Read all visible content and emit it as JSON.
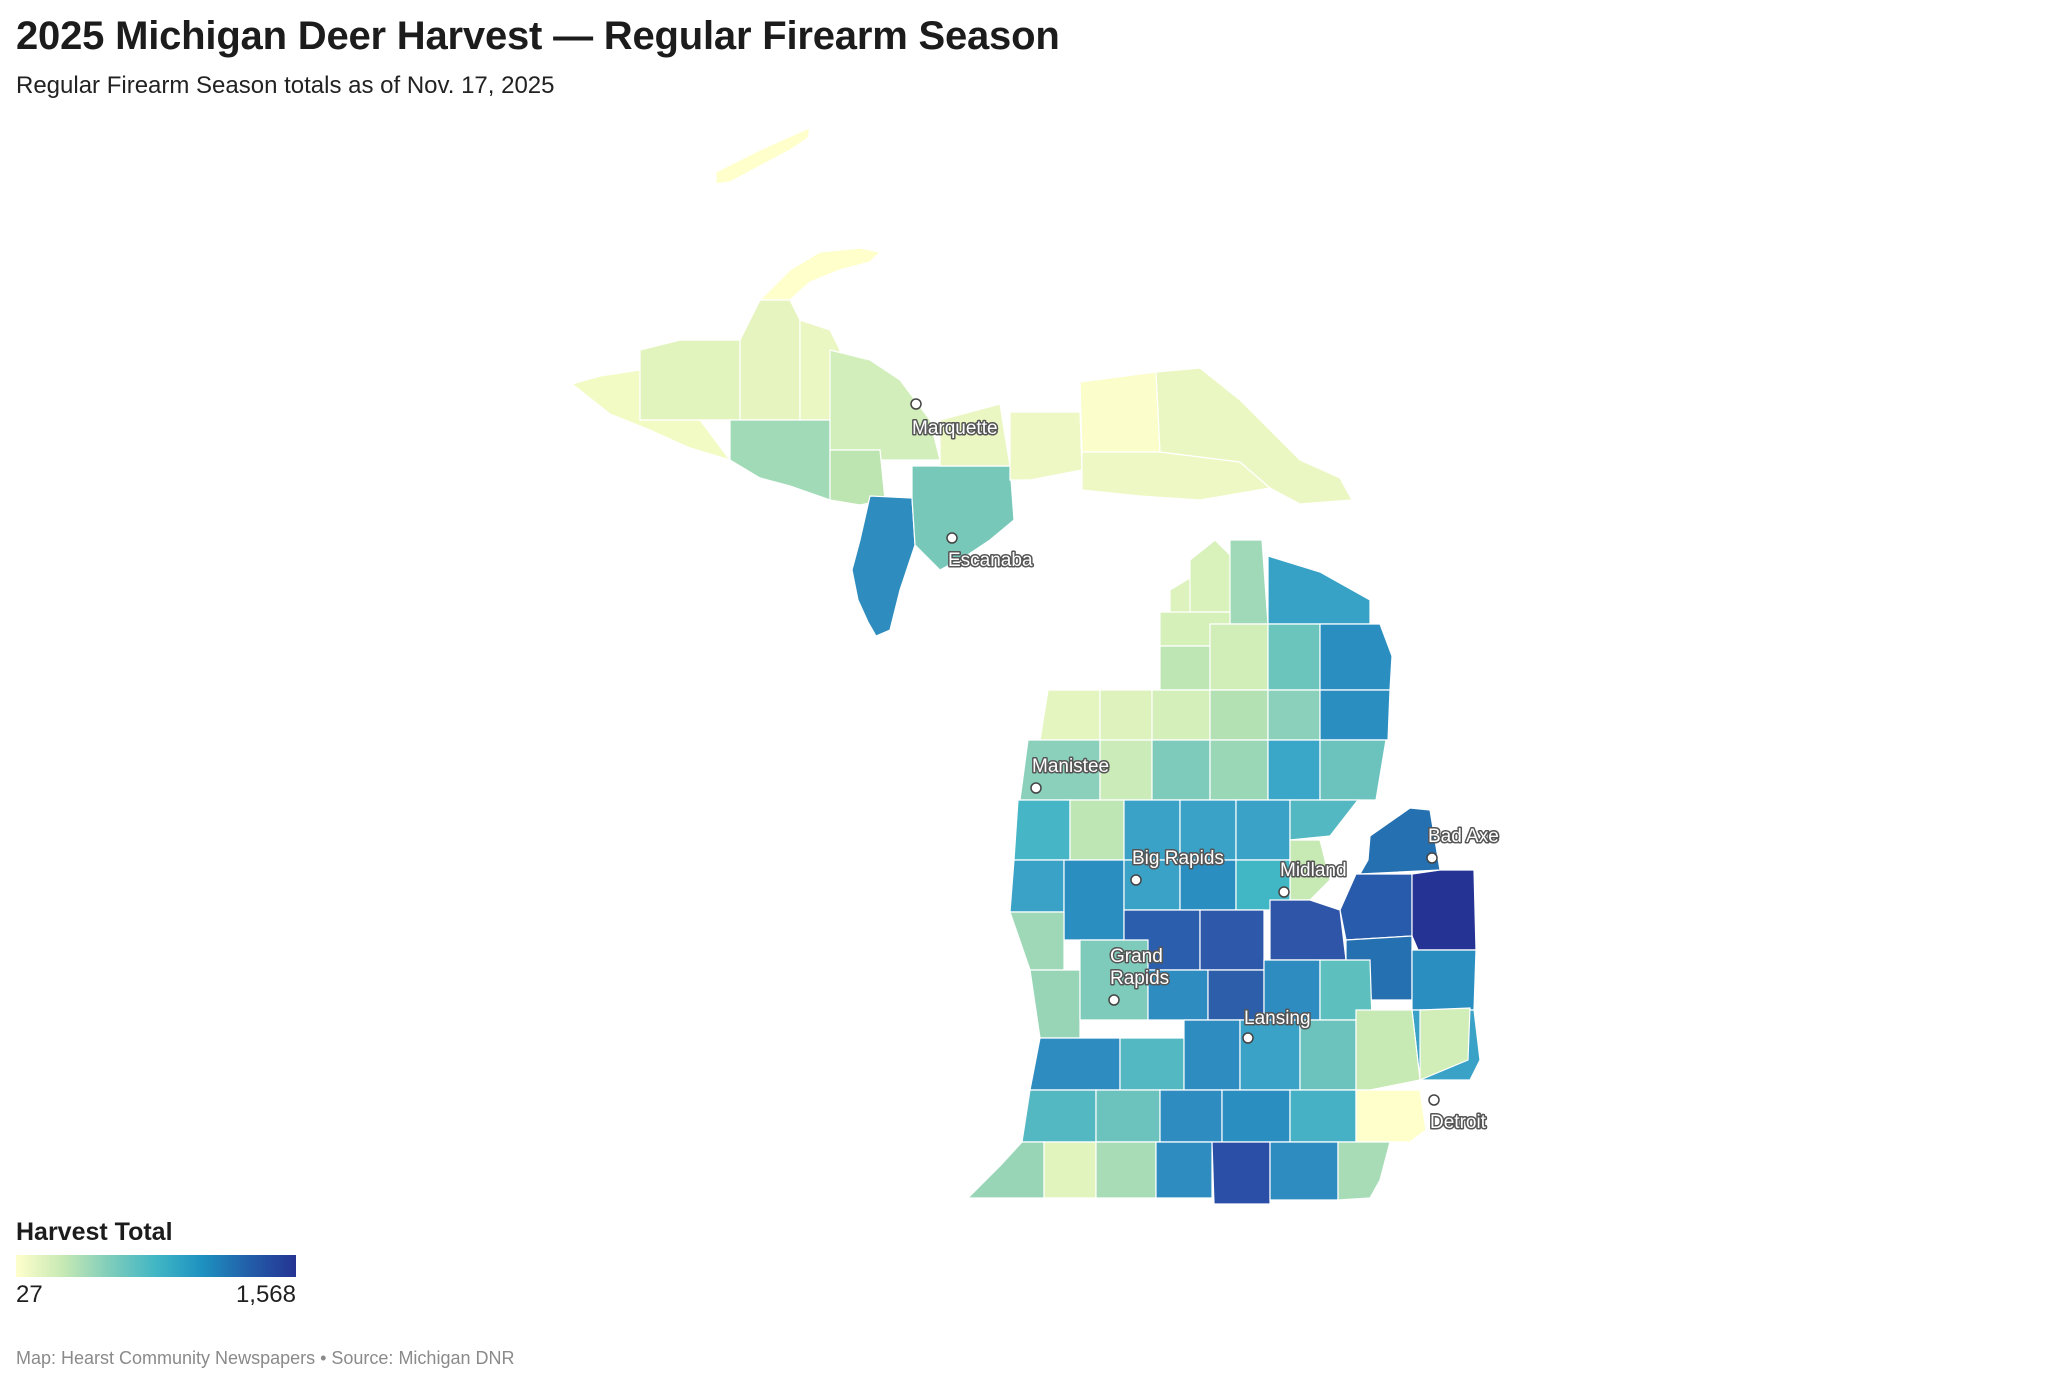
{
  "header": {
    "title": "2025 Michigan Deer Harvest — Regular Firearm Season",
    "subtitle": "Regular Firearm Season totals as of Nov. 17, 2025"
  },
  "legend": {
    "title": "Harvest Total",
    "min_label": "27",
    "max_label": "1,568"
  },
  "footer": {
    "credit": "Map: Hearst Community Newspapers • Source: Michigan DNR"
  },
  "colors": {
    "scale": [
      "#ffffcc",
      "#c7e9b4",
      "#7fcdbb",
      "#41b6c4",
      "#1d91c0",
      "#225ea8",
      "#253494"
    ],
    "county_border": "#ffffff"
  },
  "cities": [
    {
      "name": "Marquette"
    },
    {
      "name": "Escanaba"
    },
    {
      "name": "Manistee"
    },
    {
      "name": "Big Rapids"
    },
    {
      "name": "Midland"
    },
    {
      "name": "Bad Axe"
    },
    {
      "name": "Grand Rapids"
    },
    {
      "name": "Lansing"
    },
    {
      "name": "Detroit"
    }
  ]
}
